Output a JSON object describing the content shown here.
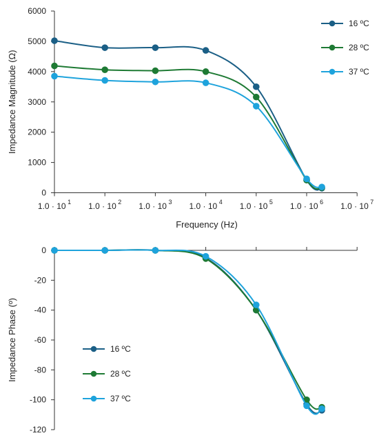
{
  "chart_data": [
    {
      "type": "line",
      "x_scale": "log",
      "x": [
        10,
        100,
        1000,
        10000,
        100000,
        1000000,
        2000000
      ],
      "xlim_exponents": [
        1,
        7
      ],
      "x_tick_mantissa": "1.0 · 10",
      "x_tick_exponents": [
        "1",
        "2",
        "3",
        "4",
        "5",
        "6",
        "7"
      ],
      "xlabel": "Frequency (Hz)",
      "ylabel": "Impedance Magnitude (Ω)",
      "ylim": [
        0,
        6000
      ],
      "y_ticks": [
        "0",
        "1000",
        "2000",
        "3000",
        "4000",
        "5000",
        "6000"
      ],
      "grid": false,
      "legend_position": "top-right",
      "series": [
        {
          "name": "16 ºC",
          "color": "#1b5f86",
          "values": [
            5020,
            4790,
            4790,
            4700,
            3500,
            420,
            150
          ]
        },
        {
          "name": "28 ºC",
          "color": "#1e7a34",
          "values": [
            4190,
            4060,
            4030,
            4000,
            3160,
            420,
            170
          ]
        },
        {
          "name": "37 ºC",
          "color": "#1ea3dc",
          "values": [
            3850,
            3710,
            3660,
            3630,
            2860,
            460,
            190
          ]
        }
      ]
    },
    {
      "type": "line",
      "x_scale": "log",
      "x": [
        10,
        100,
        1000,
        10000,
        100000,
        1000000,
        2000000
      ],
      "xlim_exponents": [
        1,
        7
      ],
      "xlabel": "",
      "ylabel": "Impedance Phase  (º)",
      "ylim": [
        -120,
        0
      ],
      "y_ticks": [
        "0",
        "-20",
        "-40",
        "-60",
        "-80",
        "-100",
        "-120"
      ],
      "grid": false,
      "legend_position": "bottom-left",
      "series": [
        {
          "name": "16 ºC",
          "color": "#1b5f86",
          "values": [
            0,
            0,
            0,
            -5,
            -40,
            -103,
            -107
          ]
        },
        {
          "name": "28 ºC",
          "color": "#1e7a34",
          "values": [
            0,
            0,
            0,
            -5.5,
            -40,
            -100,
            -105
          ]
        },
        {
          "name": "37 ºC",
          "color": "#1ea3dc",
          "values": [
            0,
            0,
            0,
            -4,
            -36.5,
            -104,
            -106
          ]
        }
      ]
    }
  ]
}
